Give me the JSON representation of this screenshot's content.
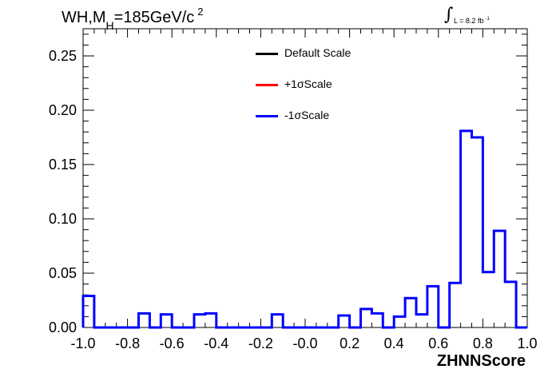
{
  "chart_data": {
    "type": "histogram",
    "title": {
      "main": "WH,M",
      "sub": "H",
      "eq": "=185GeV/c",
      "sup": "2"
    },
    "annotation": {
      "text": "L = 8.2 fb",
      "sup": "-1"
    },
    "xlabel": "ZHNNScore",
    "ylabel": "",
    "xlim": [
      -1.0,
      1.0
    ],
    "ylim": [
      0,
      0.275
    ],
    "x_ticks": [
      "-1.0",
      "-0.8",
      "-0.6",
      "-0.4",
      "-0.2",
      "-0.0",
      "0.2",
      "0.4",
      "0.6",
      "0.8",
      "1.0"
    ],
    "y_ticks": [
      "0.00",
      "0.05",
      "0.10",
      "0.15",
      "0.20",
      "0.25"
    ],
    "legend": [
      {
        "label": "Default Scale",
        "color": "#000000"
      },
      {
        "label": "+1σScale",
        "color": "#ff0000"
      },
      {
        "label": "-1σScale",
        "color": "#0000ff"
      }
    ],
    "bin_edges": [
      -1.0,
      -0.95,
      -0.9,
      -0.85,
      -0.8,
      -0.75,
      -0.7,
      -0.65,
      -0.6,
      -0.55,
      -0.5,
      -0.45,
      -0.4,
      -0.35,
      -0.3,
      -0.25,
      -0.2,
      -0.15,
      -0.1,
      -0.05,
      0.0,
      0.05,
      0.1,
      0.15,
      0.2,
      0.25,
      0.3,
      0.35,
      0.4,
      0.45,
      0.5,
      0.55,
      0.6,
      0.65,
      0.7,
      0.75,
      0.8,
      0.85,
      0.9,
      0.95,
      1.0
    ],
    "series": [
      {
        "name": "-1σScale",
        "color": "#0000ff",
        "values": [
          0.029,
          0.0,
          0.0,
          0.0,
          0.0,
          0.013,
          0.0,
          0.012,
          0.0,
          0.0,
          0.012,
          0.013,
          0.0,
          0.0,
          0.0,
          0.0,
          0.0,
          0.012,
          0.0,
          0.0,
          0.0,
          0.0,
          0.0,
          0.011,
          0.0,
          0.017,
          0.013,
          0.0,
          0.01,
          0.027,
          0.012,
          0.038,
          0.0,
          0.041,
          0.181,
          0.175,
          0.051,
          0.089,
          0.042,
          0.0
        ]
      }
    ]
  }
}
